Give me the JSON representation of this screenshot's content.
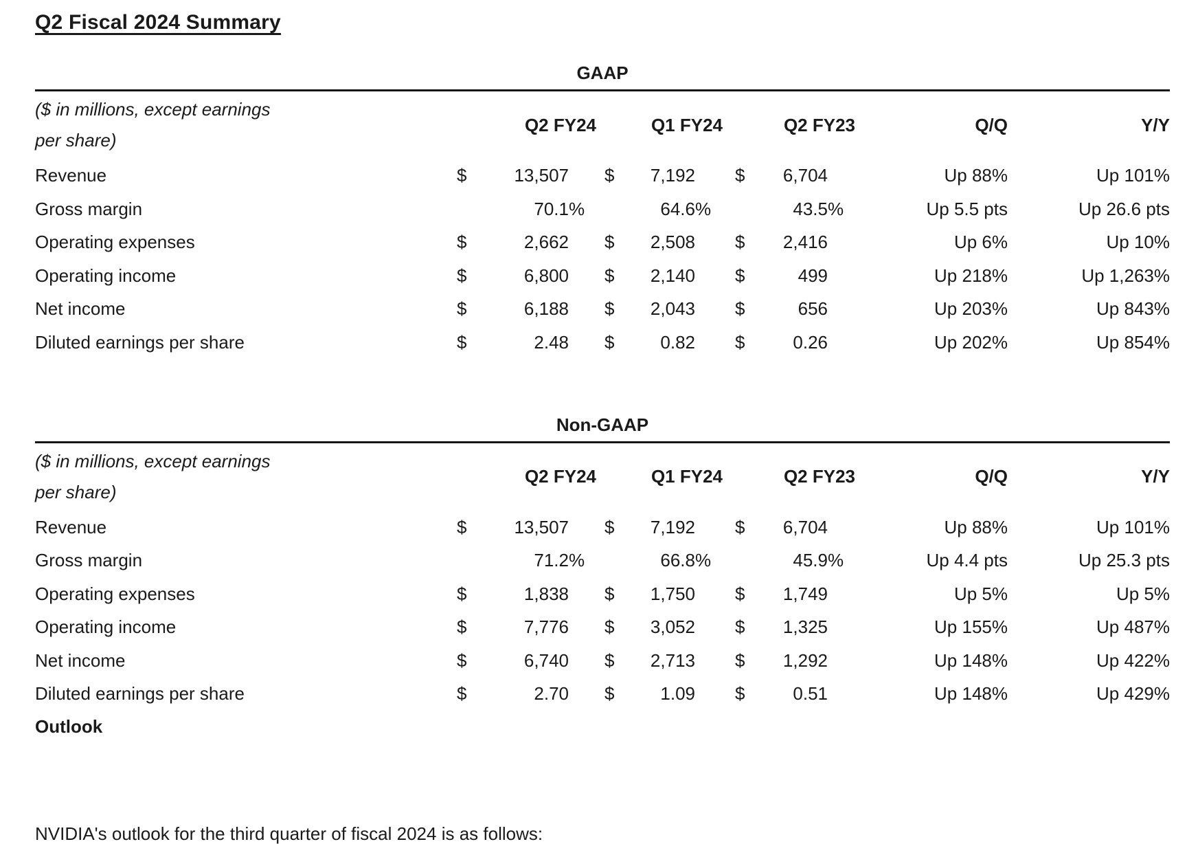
{
  "page": {
    "title": "Q2 Fiscal 2024 Summary",
    "outlook_heading": "Outlook",
    "outlook_text": "NVIDIA's outlook for the third quarter of fiscal 2024 is as follows:"
  },
  "colors": {
    "text": "#1a1a1a",
    "rule": "#161616",
    "background": "#ffffff"
  },
  "tables": [
    {
      "title": "GAAP",
      "note_line1": "($ in millions, except earnings",
      "note_line2": "per share)",
      "columns": [
        "Q2 FY24",
        "Q1 FY24",
        "Q2 FY23",
        "Q/Q",
        "Y/Y"
      ],
      "rows": [
        {
          "label": "Revenue",
          "d": "$",
          "p": "",
          "v1": "13,507",
          "v2": "7,192",
          "v3": "6,704",
          "qq": "Up 88%",
          "yy": "Up 101%"
        },
        {
          "label": "Gross margin",
          "d": "",
          "p": "%",
          "v1": "70.1",
          "v2": "64.6",
          "v3": "43.5",
          "qq": "Up 5.5 pts",
          "yy": "Up 26.6 pts"
        },
        {
          "label": "Operating expenses",
          "d": "$",
          "p": "",
          "v1": "2,662",
          "v2": "2,508",
          "v3": "2,416",
          "qq": "Up 6%",
          "yy": "Up 10%"
        },
        {
          "label": "Operating income",
          "d": "$",
          "p": "",
          "v1": "6,800",
          "v2": "2,140",
          "v3": "499",
          "qq": "Up 218%",
          "yy": "Up 1,263%"
        },
        {
          "label": "Net income",
          "d": "$",
          "p": "",
          "v1": "6,188",
          "v2": "2,043",
          "v3": "656",
          "qq": "Up 203%",
          "yy": "Up 843%"
        },
        {
          "label": "Diluted earnings per share",
          "d": "$",
          "p": "",
          "v1": "2.48",
          "v2": "0.82",
          "v3": "0.26",
          "qq": "Up 202%",
          "yy": "Up 854%"
        }
      ]
    },
    {
      "title": "Non-GAAP",
      "note_line1": "($ in millions, except earnings",
      "note_line2": "per share)",
      "columns": [
        "Q2 FY24",
        "Q1 FY24",
        "Q2 FY23",
        "Q/Q",
        "Y/Y"
      ],
      "rows": [
        {
          "label": "Revenue",
          "d": "$",
          "p": "",
          "v1": "13,507",
          "v2": "7,192",
          "v3": "6,704",
          "qq": "Up 88%",
          "yy": "Up 101%"
        },
        {
          "label": "Gross margin",
          "d": "",
          "p": "%",
          "v1": "71.2",
          "v2": "66.8",
          "v3": "45.9",
          "qq": "Up 4.4 pts",
          "yy": "Up 25.3 pts"
        },
        {
          "label": "Operating expenses",
          "d": "$",
          "p": "",
          "v1": "1,838",
          "v2": "1,750",
          "v3": "1,749",
          "qq": "Up 5%",
          "yy": "Up 5%"
        },
        {
          "label": "Operating income",
          "d": "$",
          "p": "",
          "v1": "7,776",
          "v2": "3,052",
          "v3": "1,325",
          "qq": "Up 155%",
          "yy": "Up 487%"
        },
        {
          "label": "Net income",
          "d": "$",
          "p": "",
          "v1": "6,740",
          "v2": "2,713",
          "v3": "1,292",
          "qq": "Up 148%",
          "yy": "Up 422%"
        },
        {
          "label": "Diluted earnings per share",
          "d": "$",
          "p": "",
          "v1": "2.70",
          "v2": "1.09",
          "v3": "0.51",
          "qq": "Up 148%",
          "yy": "Up 429%"
        }
      ]
    }
  ]
}
